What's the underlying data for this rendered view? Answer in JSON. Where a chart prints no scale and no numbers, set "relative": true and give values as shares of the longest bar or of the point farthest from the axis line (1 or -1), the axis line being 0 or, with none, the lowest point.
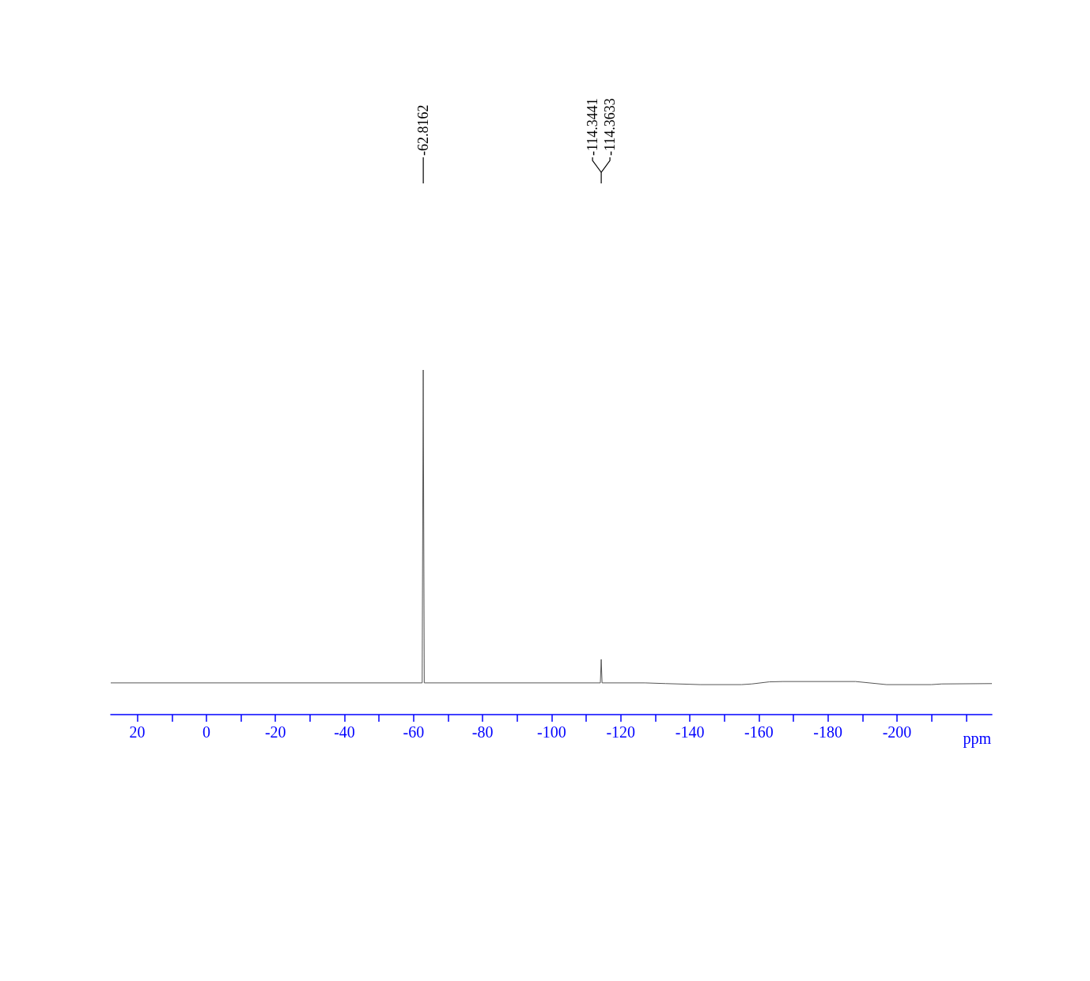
{
  "chart_data": {
    "type": "line",
    "relative": true,
    "xlabel": "ppm",
    "x": [
      27.7,
      -62.5,
      -62.8,
      -63.1,
      -114.1,
      -114.35,
      -114.6,
      -127,
      -133,
      -140,
      -143,
      -155,
      -158,
      -163,
      -167,
      -188,
      -192,
      -197,
      -210,
      -213,
      -227.5
    ],
    "series": [
      {
        "color": "#555555",
        "values": [
          0.092,
          0.092,
          1.0,
          0.092,
          0.092,
          0.16,
          0.092,
          0.092,
          0.09,
          0.088,
          0.087,
          0.087,
          0.089,
          0.095,
          0.096,
          0.096,
          0.092,
          0.087,
          0.087,
          0.089,
          0.09
        ]
      }
    ],
    "xlim": [
      27.7,
      -227.5
    ],
    "xticks": [
      20,
      {
        "value": 10,
        "label": null
      },
      0,
      {
        "value": -10,
        "label": null
      },
      -20,
      {
        "value": -30,
        "label": null
      },
      -40,
      {
        "value": -50,
        "label": null
      },
      -60,
      {
        "value": -70,
        "label": null
      },
      -80,
      {
        "value": -90,
        "label": null
      },
      -100,
      {
        "value": -110,
        "label": null
      },
      -120,
      {
        "value": -130,
        "label": null
      },
      -140,
      {
        "value": -150,
        "label": null
      },
      -160,
      {
        "value": -170,
        "label": null
      },
      -180,
      {
        "value": -190,
        "label": null
      },
      -200,
      {
        "value": -210,
        "label": null
      },
      {
        "value": -220,
        "label": null
      }
    ],
    "annotations": [
      {
        "text": "-62.8162",
        "x": -62.8162
      },
      {
        "text": "-114.3441",
        "x": -114.3441
      },
      {
        "text": "-114.3633",
        "x": -114.3633
      }
    ],
    "grid": false,
    "marker": "none",
    "line_style": "solid"
  }
}
